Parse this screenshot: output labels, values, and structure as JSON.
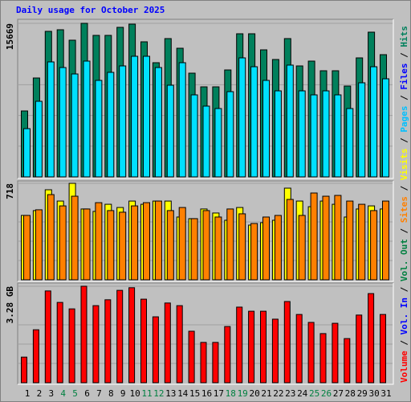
{
  "title": "Daily usage for October 2025",
  "title_color": "#0000ff",
  "side_legend": {
    "separator": "/",
    "items": [
      {
        "text": "Volume",
        "color": "#ff0000"
      },
      {
        "text": "Vol. In",
        "color": "#0000ff"
      },
      {
        "text": "Vol. Out",
        "color": "#008040"
      },
      {
        "text": "Sites",
        "color": "#ff8000"
      },
      {
        "text": "Visits",
        "color": "#ffff00"
      },
      {
        "text": "Pages",
        "color": "#00c0ff"
      },
      {
        "text": "Files",
        "color": "#0000ff"
      },
      {
        "text": "Hits",
        "color": "#00805c"
      }
    ]
  },
  "highlight": [
    "4",
    "5",
    "11",
    "12",
    "18",
    "19",
    "25",
    "26"
  ],
  "highlight_color": "#008040",
  "chart_data": [
    {
      "type": "bar",
      "ylim": [
        0,
        15669
      ],
      "yticks": [
        15669
      ],
      "series": [
        {
          "name": "Hits",
          "color": "#00805c",
          "values": [
            6727,
            10091,
            14849,
            15013,
            13947,
            15669,
            14439,
            14439,
            15259,
            15587,
            13783,
            11650,
            14111,
            13126,
            10583,
            9188,
            9188,
            10911,
            14603,
            14603,
            12962,
            11978,
            14111,
            11322,
            11814,
            10829,
            10829,
            9270,
            12142,
            14767,
            12470
          ]
        },
        {
          "name": "Files",
          "color": "#00e0ff",
          "values": [
            4922,
            7712,
            11732,
            11157,
            10501,
            11814,
            9845,
            10665,
            11322,
            12306,
            12306,
            11157,
            9353,
            11650,
            8368,
            7220,
            6973,
            8696,
            12142,
            11239,
            9845,
            8778,
            11404,
            8778,
            8368,
            8778,
            8368,
            6973,
            9599,
            11239,
            10009
          ]
        }
      ]
    },
    {
      "type": "bar",
      "ylim": [
        0,
        718
      ],
      "yticks": [
        718
      ],
      "series": [
        {
          "name": "Visits",
          "color": "#ffff00",
          "values": [
            479,
            515,
            670,
            586,
            718,
            527,
            509,
            562,
            538,
            586,
            562,
            586,
            586,
            467,
            455,
            527,
            497,
            443,
            538,
            407,
            425,
            443,
            682,
            586,
            544,
            586,
            562,
            467,
            527,
            550,
            527
          ]
        },
        {
          "name": "Sites",
          "color": "#ff8000",
          "values": [
            479,
            521,
            634,
            550,
            622,
            527,
            574,
            515,
            503,
            550,
            574,
            586,
            515,
            538,
            455,
            515,
            467,
            527,
            491,
            419,
            467,
            479,
            598,
            479,
            646,
            622,
            628,
            586,
            562,
            515,
            586
          ]
        }
      ]
    },
    {
      "type": "bar",
      "ylim": [
        0,
        3.28
      ],
      "yticks": [
        {
          "value": 3.28,
          "label": "3.28 GB"
        }
      ],
      "categories": [
        "1",
        "2",
        "3",
        "4",
        "5",
        "6",
        "7",
        "8",
        "9",
        "10",
        "11",
        "12",
        "13",
        "14",
        "15",
        "16",
        "17",
        "18",
        "19",
        "20",
        "21",
        "22",
        "23",
        "24",
        "25",
        "26",
        "27",
        "28",
        "29",
        "30",
        "31"
      ],
      "series": [
        {
          "name": "Volume",
          "color": "#ff0000",
          "values": [
            0.87,
            1.8,
            3.12,
            2.73,
            2.51,
            3.28,
            2.62,
            2.82,
            3.14,
            3.23,
            2.84,
            2.24,
            2.71,
            2.62,
            1.75,
            1.37,
            1.37,
            1.91,
            2.57,
            2.43,
            2.43,
            2.16,
            2.76,
            2.32,
            2.05,
            1.67,
            2.02,
            1.5,
            2.3,
            3.03,
            2.32
          ]
        }
      ]
    }
  ]
}
